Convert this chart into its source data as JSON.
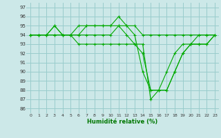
{
  "xlabel": "Humidité relative (%)",
  "background_color": "#cce8e8",
  "grid_color": "#99cccc",
  "line_color": "#00aa00",
  "ylim": [
    85.5,
    97.5
  ],
  "xlim": [
    -0.5,
    23.5
  ],
  "yticks": [
    86,
    87,
    88,
    89,
    90,
    91,
    92,
    93,
    94,
    95,
    96,
    97
  ],
  "xticks": [
    0,
    1,
    2,
    3,
    4,
    5,
    6,
    7,
    8,
    9,
    10,
    11,
    12,
    13,
    14,
    15,
    16,
    17,
    18,
    19,
    20,
    21,
    22,
    23
  ],
  "series": [
    [
      94,
      94,
      94,
      95,
      94,
      94,
      95,
      95,
      95,
      95,
      95,
      95,
      95,
      95,
      94,
      94,
      94,
      94,
      94,
      94,
      94,
      94,
      94,
      94
    ],
    [
      94,
      94,
      94,
      94,
      94,
      94,
      94,
      95,
      95,
      95,
      95,
      96,
      95,
      94,
      90,
      88,
      88,
      90,
      92,
      93,
      93,
      94,
      94,
      94
    ],
    [
      94,
      94,
      94,
      95,
      94,
      94,
      94,
      94,
      94,
      94,
      94,
      95,
      94,
      93,
      93,
      87,
      88,
      88,
      90,
      92,
      93,
      93,
      93,
      94
    ],
    [
      94,
      94,
      94,
      94,
      94,
      94,
      93,
      93,
      93,
      93,
      93,
      93,
      93,
      93,
      92,
      88,
      88,
      88,
      90,
      92,
      93,
      93,
      93,
      94
    ]
  ]
}
